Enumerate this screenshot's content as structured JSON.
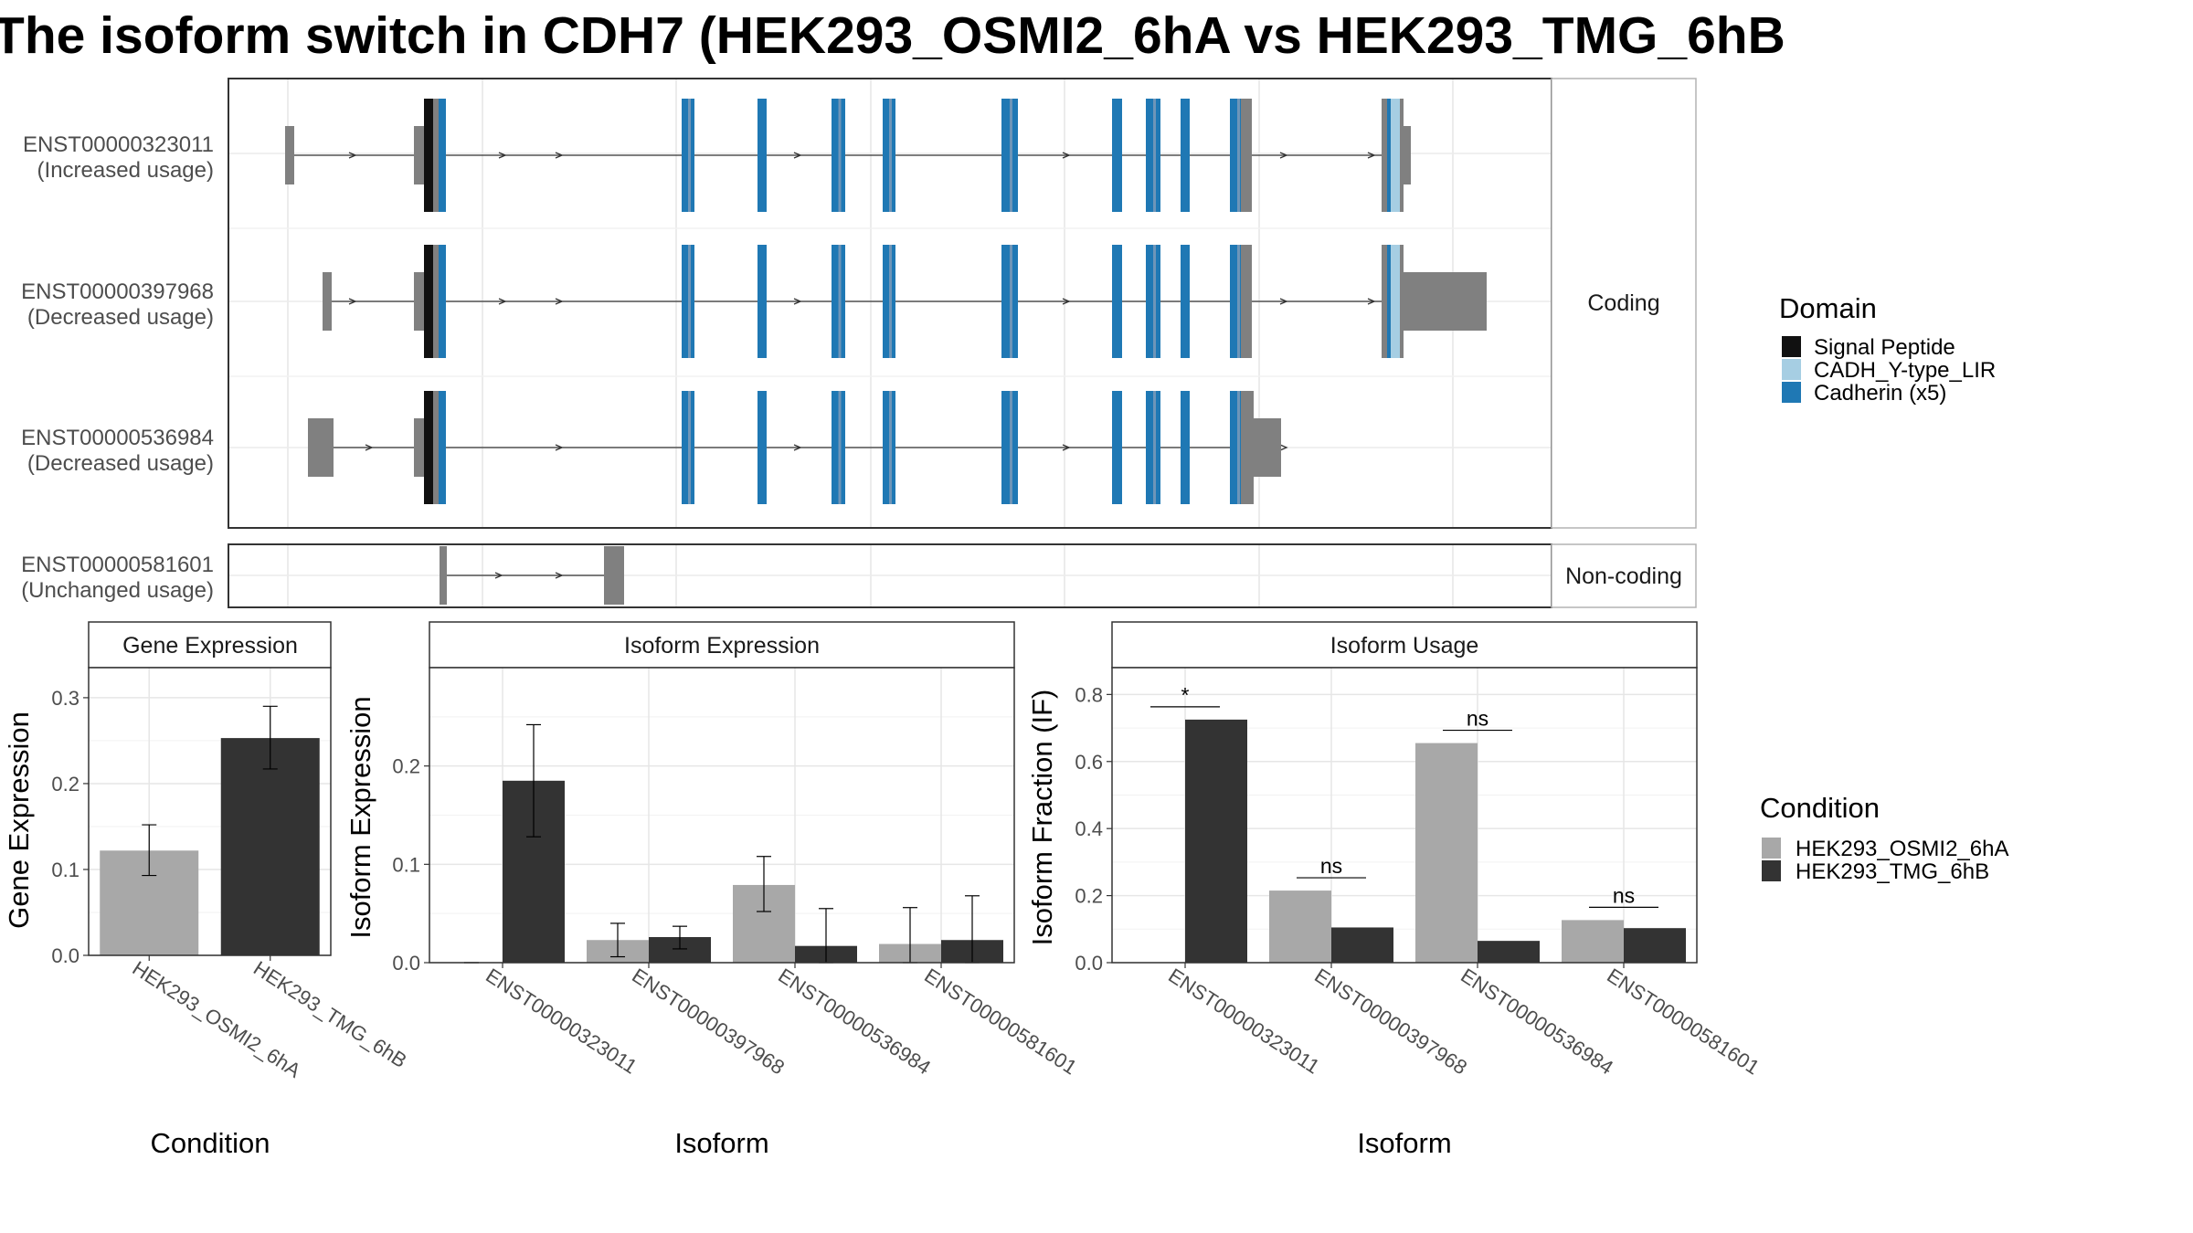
{
  "title": "The isoform switch in CDH7 (HEK293_OSMI2_6hA vs HEK293_TMG_6hB",
  "colors": {
    "cond_a": "#a8a8a8",
    "cond_b": "#333333",
    "signal_peptide": "#111111",
    "cadh_y_type_lir": "#a6cee3",
    "cadherin": "#1f78b4",
    "utr": "#808080"
  },
  "chart_data": [
    {
      "type": "gene-structure",
      "panel": "transcript-structure",
      "strip_coding": "Coding",
      "strip_noncoding": "Non-coding",
      "legend_title": "Domain",
      "legend": [
        "Signal Peptide",
        "CADH_Y-type_LIR",
        "Cadherin (x5)"
      ],
      "transcripts": [
        {
          "id": "ENST00000323011",
          "usage": "(Increased usage)",
          "group": "Coding"
        },
        {
          "id": "ENST00000397968",
          "usage": "(Decreased usage)",
          "group": "Coding"
        },
        {
          "id": "ENST00000536984",
          "usage": "(Decreased usage)",
          "group": "Coding"
        },
        {
          "id": "ENST00000581601",
          "usage": "(Unchanged usage)",
          "group": "Non-coding"
        }
      ]
    },
    {
      "type": "bar",
      "panel": "gene-expression",
      "title": "Gene Expression",
      "xlabel": "Condition",
      "ylabel": "Gene Expression",
      "categories": [
        "HEK293_OSMI2_6hA",
        "HEK293_TMG_6hB"
      ],
      "values": [
        0.122,
        0.253
      ],
      "errors": [
        [
          0.093,
          0.152
        ],
        [
          0.217,
          0.29
        ]
      ],
      "ylim": [
        0,
        0.335
      ],
      "yticks": [
        0.0,
        0.1,
        0.2,
        0.3
      ]
    },
    {
      "type": "bar",
      "panel": "isoform-expression",
      "title": "Isoform Expression",
      "xlabel": "Isoform",
      "ylabel": "Isoform Expression",
      "categories": [
        "ENST00000323011",
        "ENST00000397968",
        "ENST00000536984",
        "ENST00000581601"
      ],
      "series": [
        {
          "name": "HEK293_OSMI2_6hA",
          "values": [
            0.0,
            0.023,
            0.079,
            0.019
          ],
          "errors": [
            [
              0.0,
              0.0
            ],
            [
              0.006,
              0.04
            ],
            [
              0.052,
              0.108
            ],
            [
              0.0,
              0.056
            ]
          ]
        },
        {
          "name": "HEK293_TMG_6hB",
          "values": [
            0.185,
            0.026,
            0.017,
            0.023
          ],
          "errors": [
            [
              0.128,
              0.242
            ],
            [
              0.014,
              0.037
            ],
            [
              0.0,
              0.055
            ],
            [
              0.0,
              0.068
            ]
          ]
        }
      ],
      "ylim": [
        0,
        0.3
      ],
      "yticks": [
        0.0,
        0.1,
        0.2
      ]
    },
    {
      "type": "bar",
      "panel": "isoform-usage",
      "title": "Isoform Usage",
      "xlabel": "Isoform",
      "ylabel": "Isoform Fraction (IF)",
      "categories": [
        "ENST00000323011",
        "ENST00000397968",
        "ENST00000536984",
        "ENST00000581601"
      ],
      "series": [
        {
          "name": "HEK293_OSMI2_6hA",
          "values": [
            0.0,
            0.215,
            0.655,
            0.127
          ]
        },
        {
          "name": "HEK293_TMG_6hB",
          "values": [
            0.725,
            0.105,
            0.065,
            0.103
          ]
        }
      ],
      "significance": [
        "*",
        "ns",
        "ns",
        "ns"
      ],
      "ylim": [
        0,
        0.88
      ],
      "yticks": [
        0.0,
        0.2,
        0.4,
        0.6,
        0.8
      ]
    }
  ],
  "condition_legend": {
    "title": "Condition",
    "items": [
      "HEK293_OSMI2_6hA",
      "HEK293_TMG_6hB"
    ]
  }
}
